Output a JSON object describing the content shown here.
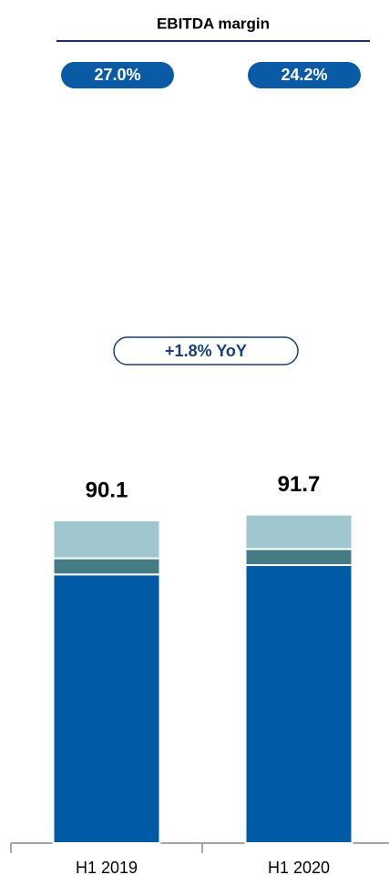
{
  "chart_data": {
    "type": "stacked_bar",
    "margin": {
      "title": "EBITDA margin",
      "values": [
        27.0,
        24.2
      ],
      "value_labels": [
        "27.0%",
        "24.2%"
      ]
    },
    "annotation": "+1.8% YoY",
    "categories": [
      "H1 2019",
      "H1 2020"
    ],
    "series": [
      {
        "color": "#005aa6",
        "values": [
          75.0,
          77.6
        ]
      },
      {
        "color": "#457b84",
        "values": [
          4.5,
          4.5
        ]
      },
      {
        "color": "#a0c6cf",
        "values": [
          10.6,
          9.6
        ]
      }
    ],
    "totals": [
      90.1,
      91.7
    ],
    "ylim": [
      0,
      100
    ]
  }
}
